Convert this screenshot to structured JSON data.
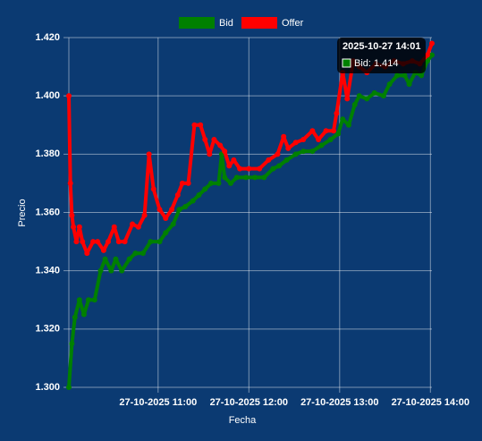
{
  "chart_data": {
    "type": "line",
    "x_label": "Fecha",
    "y_label": "Precio",
    "xlim": [
      "2025-10-27 10:01",
      "2025-10-27 14:01"
    ],
    "xticks": [
      {
        "value": "2025-10-27 11:00",
        "label": "27-10-2025 11:00"
      },
      {
        "value": "2025-10-27 12:00",
        "label": "27-10-2025 12:00"
      },
      {
        "value": "2025-10-27 13:00",
        "label": "27-10-2025 13:00"
      },
      {
        "value": "2025-10-27 14:00",
        "label": "27-10-2025 14:00"
      }
    ],
    "ylim": [
      1.3,
      1.42
    ],
    "yticks": [
      {
        "value": 1.3,
        "label": "1.300"
      },
      {
        "value": 1.32,
        "label": "1.320"
      },
      {
        "value": 1.34,
        "label": "1.340"
      },
      {
        "value": 1.36,
        "label": "1.360"
      },
      {
        "value": 1.38,
        "label": "1.380"
      },
      {
        "value": 1.4,
        "label": "1.400"
      },
      {
        "value": 1.42,
        "label": "1.420"
      }
    ],
    "grid": true,
    "legend": "top",
    "series": [
      {
        "name": "Bid",
        "color": "#008000",
        "x": [
          "2025-10-27 10:01",
          "2025-10-27 10:03",
          "2025-10-27 10:05",
          "2025-10-27 10:08",
          "2025-10-27 10:11",
          "2025-10-27 10:14",
          "2025-10-27 10:18",
          "2025-10-27 10:22",
          "2025-10-27 10:25",
          "2025-10-27 10:29",
          "2025-10-27 10:32",
          "2025-10-27 10:36",
          "2025-10-27 10:41",
          "2025-10-27 10:45",
          "2025-10-27 10:50",
          "2025-10-27 10:55",
          "2025-10-27 11:01",
          "2025-10-27 11:05",
          "2025-10-27 11:10",
          "2025-10-27 11:14",
          "2025-10-27 11:18",
          "2025-10-27 11:23",
          "2025-10-27 11:27",
          "2025-10-27 11:31",
          "2025-10-27 11:35",
          "2025-10-27 11:40",
          "2025-10-27 11:42",
          "2025-10-27 11:44",
          "2025-10-27 11:48",
          "2025-10-27 11:52",
          "2025-10-27 11:58",
          "2025-10-27 12:04",
          "2025-10-27 12:10",
          "2025-10-27 12:16",
          "2025-10-27 12:20",
          "2025-10-27 12:25",
          "2025-10-27 12:31",
          "2025-10-27 12:36",
          "2025-10-27 12:42",
          "2025-10-27 12:48",
          "2025-10-27 12:54",
          "2025-10-27 12:59",
          "2025-10-27 13:02",
          "2025-10-27 13:06",
          "2025-10-27 13:10",
          "2025-10-27 13:13",
          "2025-10-27 13:18",
          "2025-10-27 13:23",
          "2025-10-27 13:29",
          "2025-10-27 13:33",
          "2025-10-27 13:38",
          "2025-10-27 13:43",
          "2025-10-27 13:46",
          "2025-10-27 13:50",
          "2025-10-27 13:54",
          "2025-10-27 13:58",
          "2025-10-27 14:01"
        ],
        "values": [
          1.3,
          1.315,
          1.324,
          1.33,
          1.325,
          1.33,
          1.33,
          1.34,
          1.344,
          1.34,
          1.344,
          1.34,
          1.344,
          1.346,
          1.346,
          1.35,
          1.35,
          1.353,
          1.356,
          1.361,
          1.362,
          1.364,
          1.366,
          1.368,
          1.37,
          1.37,
          1.38,
          1.372,
          1.37,
          1.372,
          1.372,
          1.372,
          1.372,
          1.375,
          1.376,
          1.378,
          1.38,
          1.381,
          1.381,
          1.383,
          1.385,
          1.387,
          1.392,
          1.39,
          1.397,
          1.4,
          1.399,
          1.401,
          1.4,
          1.404,
          1.407,
          1.407,
          1.404,
          1.408,
          1.407,
          1.412,
          1.414
        ]
      },
      {
        "name": "Offer",
        "color": "#ff0000",
        "x": [
          "2025-10-27 10:01",
          "2025-10-27 10:02",
          "2025-10-27 10:03",
          "2025-10-27 10:04",
          "2025-10-27 10:06",
          "2025-10-27 10:08",
          "2025-10-27 10:10",
          "2025-10-27 10:13",
          "2025-10-27 10:17",
          "2025-10-27 10:20",
          "2025-10-27 10:24",
          "2025-10-27 10:27",
          "2025-10-27 10:31",
          "2025-10-27 10:34",
          "2025-10-27 10:38",
          "2025-10-27 10:43",
          "2025-10-27 10:47",
          "2025-10-27 10:51",
          "2025-10-27 10:54",
          "2025-10-27 10:57",
          "2025-10-27 11:01",
          "2025-10-27 11:05",
          "2025-10-27 11:09",
          "2025-10-27 11:13",
          "2025-10-27 11:16",
          "2025-10-27 11:20",
          "2025-10-27 11:24",
          "2025-10-27 11:28",
          "2025-10-27 11:31",
          "2025-10-27 11:34",
          "2025-10-27 11:37",
          "2025-10-27 11:41",
          "2025-10-27 11:44",
          "2025-10-27 11:47",
          "2025-10-27 11:50",
          "2025-10-27 11:54",
          "2025-10-27 12:00",
          "2025-10-27 12:07",
          "2025-10-27 12:13",
          "2025-10-27 12:19",
          "2025-10-27 12:23",
          "2025-10-27 12:26",
          "2025-10-27 12:31",
          "2025-10-27 12:36",
          "2025-10-27 12:42",
          "2025-10-27 12:46",
          "2025-10-27 12:51",
          "2025-10-27 12:56",
          "2025-10-27 12:58",
          "2025-10-27 13:02",
          "2025-10-27 13:05",
          "2025-10-27 13:09",
          "2025-10-27 13:13",
          "2025-10-27 13:18",
          "2025-10-27 13:24",
          "2025-10-27 13:30",
          "2025-10-27 13:36",
          "2025-10-27 13:42",
          "2025-10-27 13:48",
          "2025-10-27 13:53",
          "2025-10-27 13:58",
          "2025-10-27 14:01"
        ],
        "values": [
          1.4,
          1.37,
          1.359,
          1.355,
          1.35,
          1.355,
          1.35,
          1.346,
          1.35,
          1.35,
          1.347,
          1.35,
          1.355,
          1.35,
          1.35,
          1.356,
          1.355,
          1.359,
          1.38,
          1.368,
          1.361,
          1.358,
          1.361,
          1.366,
          1.37,
          1.37,
          1.39,
          1.39,
          1.385,
          1.38,
          1.385,
          1.383,
          1.381,
          1.376,
          1.378,
          1.375,
          1.375,
          1.375,
          1.378,
          1.38,
          1.386,
          1.382,
          1.384,
          1.385,
          1.388,
          1.385,
          1.388,
          1.388,
          1.394,
          1.408,
          1.399,
          1.412,
          1.41,
          1.408,
          1.411,
          1.41,
          1.412,
          1.411,
          1.412,
          1.411,
          1.414,
          1.418
        ]
      }
    ],
    "tooltip": {
      "title": "2025-10-27 14:01",
      "label": "Bid: 1.414"
    }
  }
}
